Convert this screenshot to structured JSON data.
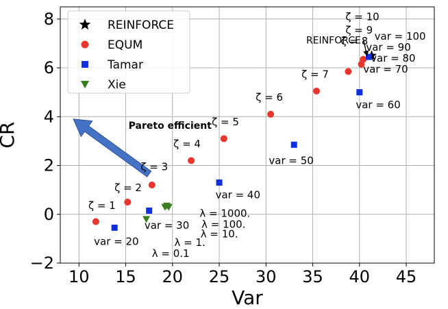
{
  "chart_data": {
    "type": "scatter",
    "xlabel": "Var",
    "ylabel": "CR",
    "xlim": [
      8,
      48
    ],
    "ylim": [
      -2,
      8.5
    ],
    "xticks": [
      10,
      15,
      20,
      25,
      30,
      35,
      40,
      45
    ],
    "yticks": [
      -2,
      0,
      2,
      4,
      6,
      8
    ],
    "xtick_labels": [
      "10",
      "15",
      "20",
      "25",
      "30",
      "35",
      "40",
      "45"
    ],
    "ytick_labels": [
      "−2",
      "0",
      "2",
      "4",
      "6",
      "8"
    ],
    "grid": true,
    "legend_position": "top-left",
    "series": [
      {
        "name": "REINFORCE",
        "marker": "star",
        "color": "#000000",
        "points": [
          {
            "x": 41.3,
            "y": 6.5
          }
        ]
      },
      {
        "name": "EQUM",
        "marker": "circle",
        "color": "#e8352e",
        "points": [
          {
            "x": 11.8,
            "y": -0.3
          },
          {
            "x": 15.2,
            "y": 0.5
          },
          {
            "x": 17.8,
            "y": 1.2
          },
          {
            "x": 22.0,
            "y": 2.2
          },
          {
            "x": 25.5,
            "y": 3.1
          },
          {
            "x": 30.5,
            "y": 4.1
          },
          {
            "x": 35.4,
            "y": 5.05
          },
          {
            "x": 38.8,
            "y": 5.85
          },
          {
            "x": 40.2,
            "y": 6.15
          },
          {
            "x": 40.4,
            "y": 6.35
          }
        ]
      },
      {
        "name": "Tamar",
        "marker": "square",
        "color": "#1030e0",
        "points": [
          {
            "x": 13.8,
            "y": -0.55
          },
          {
            "x": 17.5,
            "y": 0.15
          },
          {
            "x": 25.0,
            "y": 1.3
          },
          {
            "x": 33.0,
            "y": 2.85
          },
          {
            "x": 40.0,
            "y": 5.0
          },
          {
            "x": 41.0,
            "y": 6.45
          }
        ]
      },
      {
        "name": "Xie",
        "marker": "triangle-down",
        "color": "#3a7d1e",
        "points": [
          {
            "x": 17.2,
            "y": -0.2
          },
          {
            "x": 19.2,
            "y": 0.3
          },
          {
            "x": 19.4,
            "y": 0.35
          },
          {
            "x": 19.6,
            "y": 0.3
          }
        ]
      }
    ],
    "annotations": [
      {
        "text": "ζ = 1",
        "x": 11.0,
        "y": 0.22
      },
      {
        "text": "ζ = 2",
        "x": 13.8,
        "y": 0.95
      },
      {
        "text": "ζ = 3",
        "x": 16.6,
        "y": 1.8
      },
      {
        "text": "ζ = 4",
        "x": 20.1,
        "y": 2.75
      },
      {
        "text": "ζ = 5",
        "x": 24.2,
        "y": 3.65
      },
      {
        "text": "ζ = 6",
        "x": 28.9,
        "y": 4.65
      },
      {
        "text": "ζ = 7",
        "x": 33.8,
        "y": 5.6
      },
      {
        "text": "ζ = 8",
        "x": 38.0,
        "y": 6.95
      },
      {
        "text": "ζ = 9",
        "x": 38.5,
        "y": 7.4
      },
      {
        "text": "ζ = 10",
        "x": 38.5,
        "y": 7.95
      },
      {
        "text": "var = 100",
        "x": 41.6,
        "y": 7.15
      },
      {
        "text": "var = 90",
        "x": 40.7,
        "y": 6.7
      },
      {
        "text": "var = 80",
        "x": 41.2,
        "y": 6.25
      },
      {
        "text": "var = 70",
        "x": 40.4,
        "y": 5.8
      },
      {
        "text": "var = 60",
        "x": 39.6,
        "y": 4.35
      },
      {
        "text": "var = 50",
        "x": 30.3,
        "y": 2.05
      },
      {
        "text": "var = 40",
        "x": 24.6,
        "y": 0.65
      },
      {
        "text": "var = 30",
        "x": 17.0,
        "y": -0.6
      },
      {
        "text": "var = 20",
        "x": 11.6,
        "y": -1.25
      },
      {
        "text": "λ = 1000.",
        "x": 22.9,
        "y": -0.1
      },
      {
        "text": "λ = 100.",
        "x": 23.1,
        "y": -0.55
      },
      {
        "text": "λ = 10.",
        "x": 23.0,
        "y": -0.95
      },
      {
        "text": "λ = 1.",
        "x": 20.2,
        "y": -1.3
      },
      {
        "text": "λ = 0.1",
        "x": 17.8,
        "y": -1.75
      }
    ],
    "arrow_annotations": [
      {
        "text": "REINFORCE",
        "text_x": 34.3,
        "text_y": 7.0,
        "to_x": 40.8,
        "to_y": 6.5
      }
    ],
    "callout": {
      "text": "Pareto efficient",
      "text_x": 15.3,
      "text_y": 3.5,
      "from_x": 17.5,
      "from_y": 1.65,
      "to_x": 9.4,
      "to_y": 3.9
    }
  }
}
